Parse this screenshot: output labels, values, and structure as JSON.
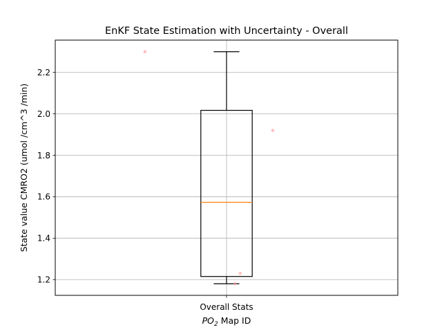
{
  "chart_data": {
    "type": "box",
    "title": "EnKF State Estimation with Uncertainty - Overall",
    "ylabel": "State value CMRO2 (umol /cm^3 /min)",
    "xlabel_main": "PO",
    "xlabel_sub": "2",
    "xlabel_rest": " Map ID",
    "categories": [
      "Overall Stats"
    ],
    "ylim": [
      1.124,
      2.356
    ],
    "yticks": [
      {
        "value": 1.2,
        "label": "1.2"
      },
      {
        "value": 1.4,
        "label": "1.4"
      },
      {
        "value": 1.6,
        "label": "1.6"
      },
      {
        "value": 1.8,
        "label": "1.8"
      },
      {
        "value": 2.0,
        "label": "2.0"
      },
      {
        "value": 2.2,
        "label": "2.2"
      }
    ],
    "grid": true,
    "box": {
      "whisker_low": 1.18,
      "q1": 1.215,
      "median": 1.573,
      "q3": 2.017,
      "whisker_high": 2.3
    },
    "points": [
      {
        "x": 0.762,
        "y": 2.3
      },
      {
        "x": 1.135,
        "y": 1.92
      },
      {
        "x": 1.04,
        "y": 1.23
      },
      {
        "x": 1.025,
        "y": 1.18
      }
    ],
    "colors": {
      "median": "#ff7f0e",
      "points": "#ff9999",
      "grid": "#b0b0b0",
      "box": "#000000"
    }
  }
}
